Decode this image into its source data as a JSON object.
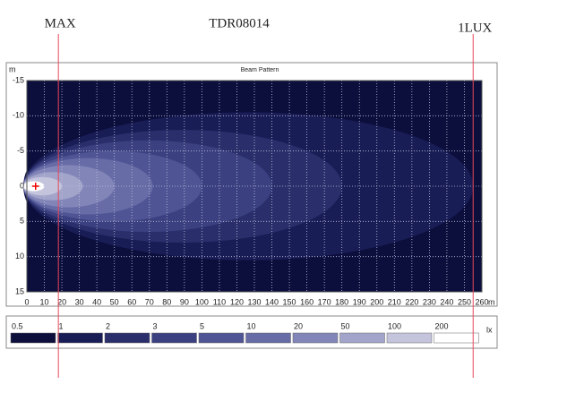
{
  "chart_data": {
    "type": "beam",
    "title": "Beam Pattern",
    "heading": "TDR08014",
    "x_unit": "m",
    "y_unit": "m",
    "xlim": [
      0,
      260
    ],
    "xticks": [
      0,
      10,
      20,
      30,
      40,
      50,
      60,
      70,
      80,
      90,
      100,
      110,
      120,
      130,
      140,
      150,
      160,
      170,
      180,
      190,
      200,
      210,
      220,
      230,
      240,
      250,
      260
    ],
    "ylim": [
      -15,
      15
    ],
    "y_inverted": true,
    "yticks": [
      -15,
      -10,
      -5,
      0,
      5,
      10,
      15
    ],
    "grid": true,
    "legend_unit": "lx",
    "levels": [
      0.5,
      1,
      2,
      3,
      5,
      10,
      20,
      50,
      100,
      200
    ],
    "colors": [
      "#0c0e3c",
      "#191d56",
      "#2a2f6c",
      "#3b4080",
      "#4f5494",
      "#676ba6",
      "#8285b8",
      "#a2a4ca",
      "#c4c5dd",
      "#ffffff"
    ],
    "reach": [
      260,
      255,
      180,
      140,
      100,
      72,
      50,
      32,
      20,
      10
    ],
    "half_width": [
      13,
      10.5,
      8,
      6.5,
      5,
      4,
      3,
      2,
      1.3,
      0.7
    ],
    "peak": {
      "x": 5,
      "y": 0
    },
    "markers": [
      {
        "label": "MAX",
        "x": 18
      },
      {
        "label": "1LUX",
        "x": 255
      }
    ]
  }
}
